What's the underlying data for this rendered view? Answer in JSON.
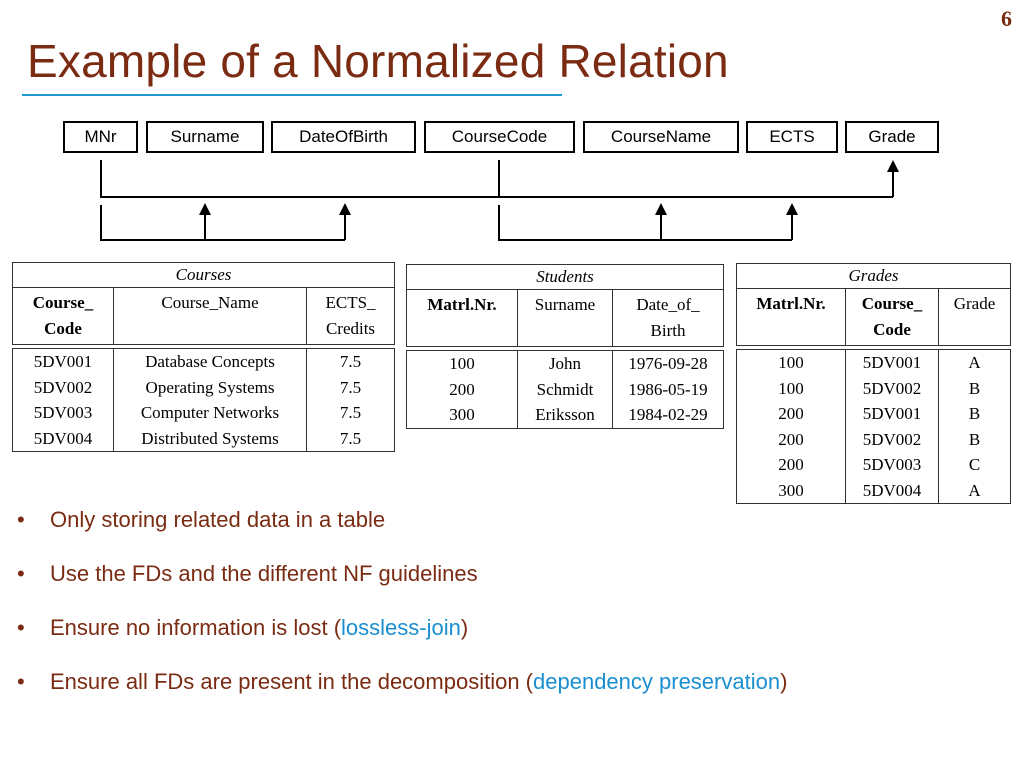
{
  "slide": {
    "number": "6",
    "title": "Example of a Normalized Relation"
  },
  "colors": {
    "title": "#7a2b12",
    "rule": "#1e9bd0",
    "highlight": "#1a8fd0"
  },
  "attributes": [
    "MNr",
    "Surname",
    "DateOfBirth",
    "CourseCode",
    "CourseName",
    "ECTS",
    "Grade"
  ],
  "courses": {
    "caption": "Courses",
    "headers": [
      [
        "Course_",
        "Code"
      ],
      [
        "Course_Name",
        ""
      ],
      [
        "ECTS_",
        "Credits"
      ]
    ],
    "rows": [
      [
        "5DV001",
        "Database Concepts",
        "7.5"
      ],
      [
        "5DV002",
        "Operating Systems",
        "7.5"
      ],
      [
        "5DV003",
        "Computer Networks",
        "7.5"
      ],
      [
        "5DV004",
        "Distributed Systems",
        "7.5"
      ]
    ]
  },
  "students": {
    "caption": "Students",
    "headers": [
      [
        "Matrl.Nr.",
        ""
      ],
      [
        "Surname",
        ""
      ],
      [
        "Date_of_",
        "Birth"
      ]
    ],
    "rows": [
      [
        "100",
        "John",
        "1976-09-28"
      ],
      [
        "200",
        "Schmidt",
        "1986-05-19"
      ],
      [
        "300",
        "Eriksson",
        "1984-02-29"
      ]
    ]
  },
  "grades": {
    "caption": "Grades",
    "headers": [
      [
        "Matrl.Nr.",
        ""
      ],
      [
        "Course_",
        "Code"
      ],
      [
        "Grade",
        ""
      ]
    ],
    "rows": [
      [
        "100",
        "5DV001",
        "A"
      ],
      [
        "100",
        "5DV002",
        "B"
      ],
      [
        "200",
        "5DV001",
        "B"
      ],
      [
        "200",
        "5DV002",
        "B"
      ],
      [
        "200",
        "5DV003",
        "C"
      ],
      [
        "300",
        "5DV004",
        "A"
      ]
    ]
  },
  "bullets": [
    {
      "text": "Only storing related data in a table",
      "highlight": "",
      "after": ""
    },
    {
      "text": "Use the FDs and the different NF guidelines",
      "highlight": "",
      "after": ""
    },
    {
      "text": "Ensure no information is lost (",
      "highlight": "lossless-join",
      "after": ")"
    },
    {
      "text": "Ensure all FDs are present in the decomposition (",
      "highlight": "dependency preservation",
      "after": ")"
    }
  ]
}
